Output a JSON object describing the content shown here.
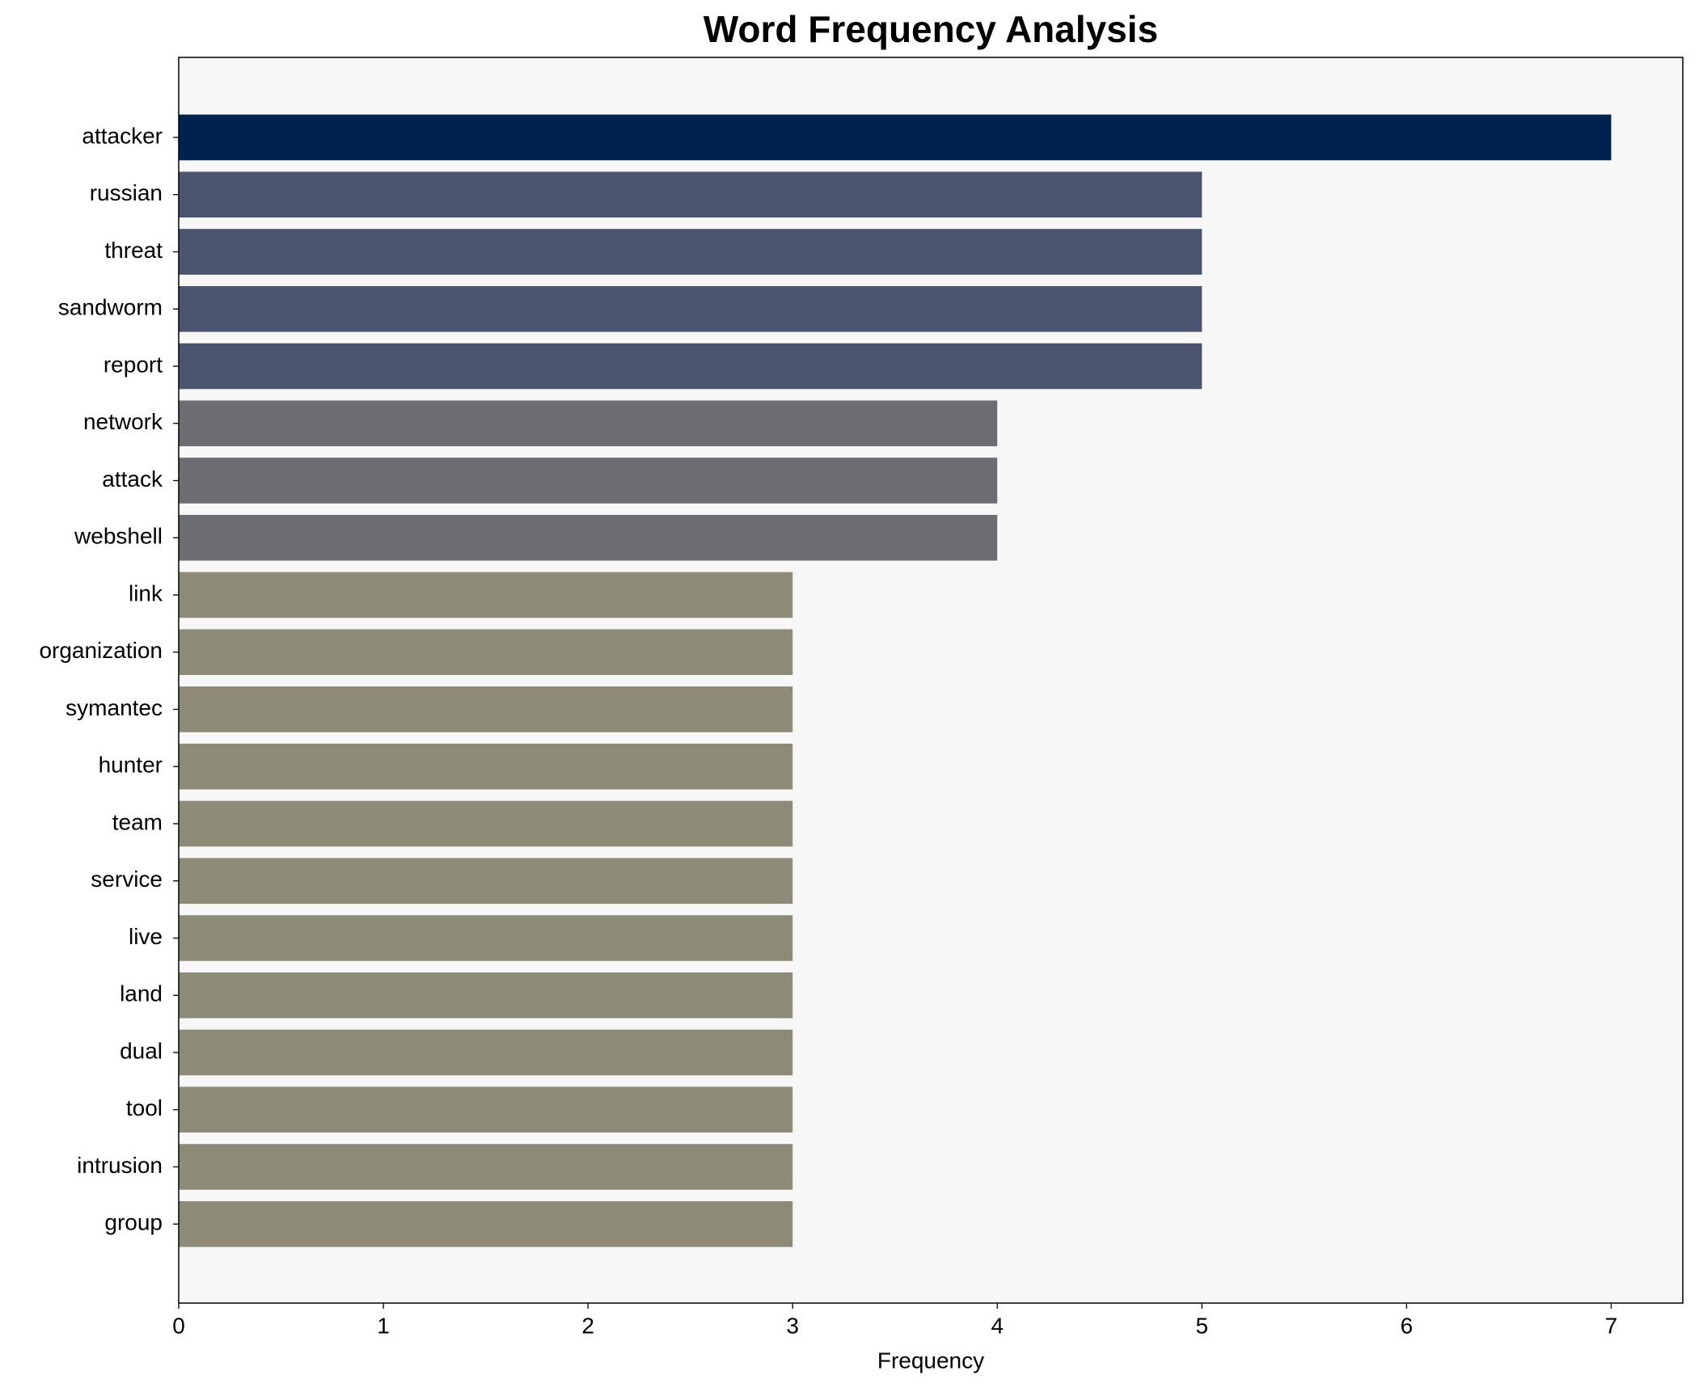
{
  "chart_data": {
    "type": "barh",
    "title": "Word Frequency Analysis",
    "x_label": "Frequency",
    "categories": [
      "attacker",
      "russian",
      "threat",
      "sandworm",
      "report",
      "network",
      "attack",
      "webshell",
      "link",
      "organization",
      "symantec",
      "hunter",
      "team",
      "service",
      "live",
      "land",
      "dual",
      "tool",
      "intrusion",
      "group"
    ],
    "values": [
      7,
      5,
      5,
      5,
      5,
      4,
      4,
      4,
      3,
      3,
      3,
      3,
      3,
      3,
      3,
      3,
      3,
      3,
      3,
      3
    ],
    "colors": [
      "#00224e",
      "#4c556f",
      "#4c556f",
      "#4c556f",
      "#4c556f",
      "#6b6d72",
      "#6b6d72",
      "#6b6d72",
      "#8e8a78",
      "#8e8a78",
      "#8e8a78",
      "#8e8a78",
      "#8e8a78",
      "#8e8a78",
      "#8e8a78",
      "#8e8a78",
      "#8e8a78",
      "#8e8a78",
      "#8e8a78",
      "#8e8a78"
    ],
    "xlim": [
      0,
      7.35
    ],
    "xticks": [
      0,
      1,
      2,
      3,
      4,
      5,
      6,
      7
    ]
  }
}
